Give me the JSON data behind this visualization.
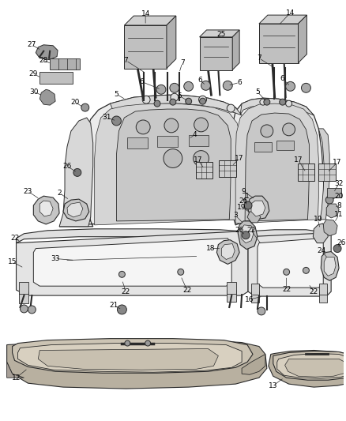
{
  "background_color": "#ffffff",
  "line_color": "#2a2a2a",
  "label_color": "#000000",
  "label_fontsize": 6.5,
  "fig_width": 4.38,
  "fig_height": 5.33,
  "dpi": 100
}
